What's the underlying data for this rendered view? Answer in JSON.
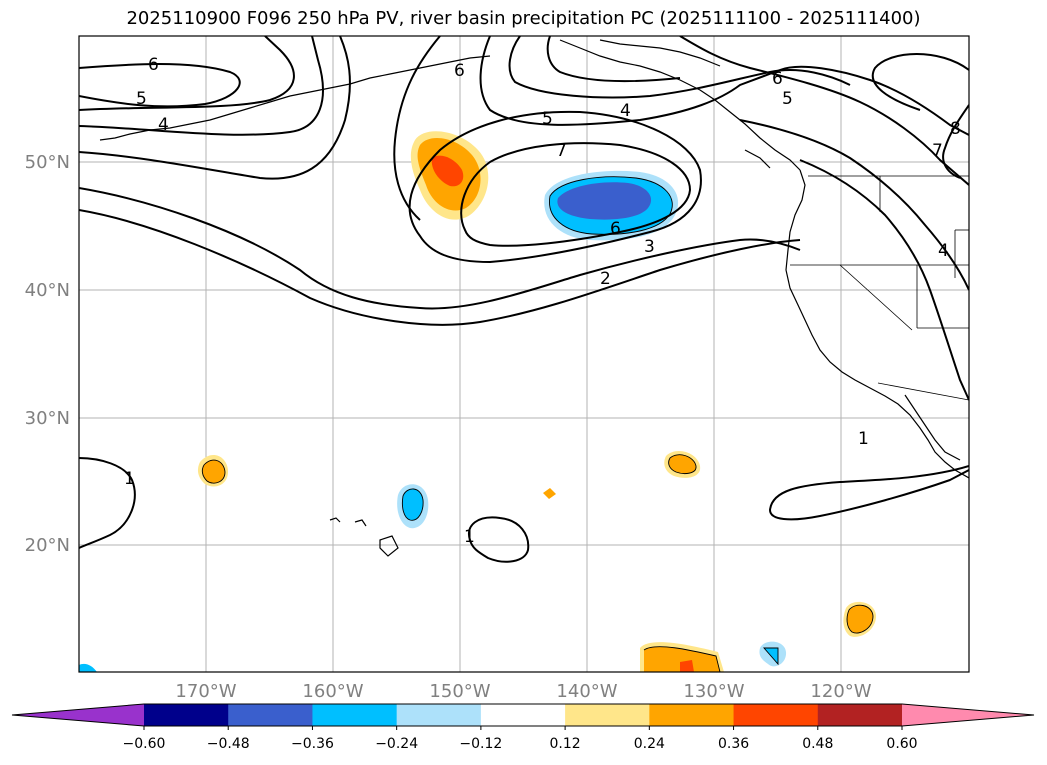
{
  "map": {
    "title": "2025110900 F096 250 hPa PV, river basin precipitation PC (2025111100 - 2025111400)",
    "lat_labels": [
      "50°N",
      "40°N",
      "30°N",
      "20°N"
    ],
    "lon_labels": [
      "170°W",
      "160°W",
      "150°W",
      "140°W",
      "130°W",
      "120°W"
    ],
    "contour_labels": [
      "6",
      "5",
      "4",
      "6",
      "5",
      "7",
      "4",
      "6",
      "5",
      "7",
      "8",
      "4",
      "6",
      "3",
      "2",
      "1",
      "1",
      "1"
    ]
  },
  "colorbar": {
    "labels": [
      "−0.60",
      "−0.48",
      "−0.36",
      "−0.24",
      "−0.12",
      "0.12",
      "0.24",
      "0.36",
      "0.48",
      "0.60"
    ],
    "colors": [
      "#9932CC",
      "#00008B",
      "#3A5FCD",
      "#00BFFF",
      "#ADE1FA",
      "#FFFFFF",
      "#FFE68A",
      "#FFA500",
      "#FF4500",
      "#B22222",
      "#FF8AAE"
    ]
  }
}
